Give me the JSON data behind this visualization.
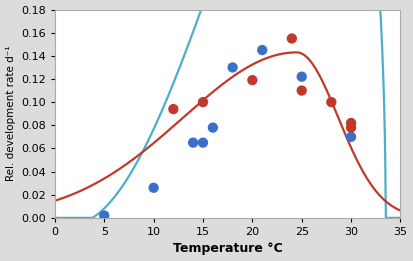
{
  "title": "",
  "xlabel": "Temperature °C",
  "ylabel": "Rel. development rate d⁻¹",
  "xlim": [
    0,
    35
  ],
  "ylim": [
    0,
    0.18
  ],
  "xticks": [
    0,
    5,
    10,
    15,
    20,
    25,
    30,
    35
  ],
  "yticks": [
    0,
    0.02,
    0.04,
    0.06,
    0.08,
    0.1,
    0.12,
    0.14,
    0.16,
    0.18
  ],
  "blue_points": [
    [
      5,
      0.002
    ],
    [
      10,
      0.026
    ],
    [
      14,
      0.065
    ],
    [
      15,
      0.065
    ],
    [
      16,
      0.078
    ],
    [
      18,
      0.13
    ],
    [
      21,
      0.145
    ],
    [
      25,
      0.122
    ],
    [
      30,
      0.07
    ]
  ],
  "red_points": [
    [
      12,
      0.094
    ],
    [
      15,
      0.1
    ],
    [
      20,
      0.119
    ],
    [
      24,
      0.155
    ],
    [
      25,
      0.11
    ],
    [
      28,
      0.1
    ],
    [
      30,
      0.082
    ],
    [
      30,
      0.078
    ]
  ],
  "blue_curve_color": "#4BAFC9",
  "red_curve_color": "#C0392B",
  "blue_dot_color": "#3B6FC9",
  "red_dot_color": "#C0392B",
  "dot_size": 55,
  "fig_bg": "#dcdcdc",
  "plot_bg": "#ffffff"
}
